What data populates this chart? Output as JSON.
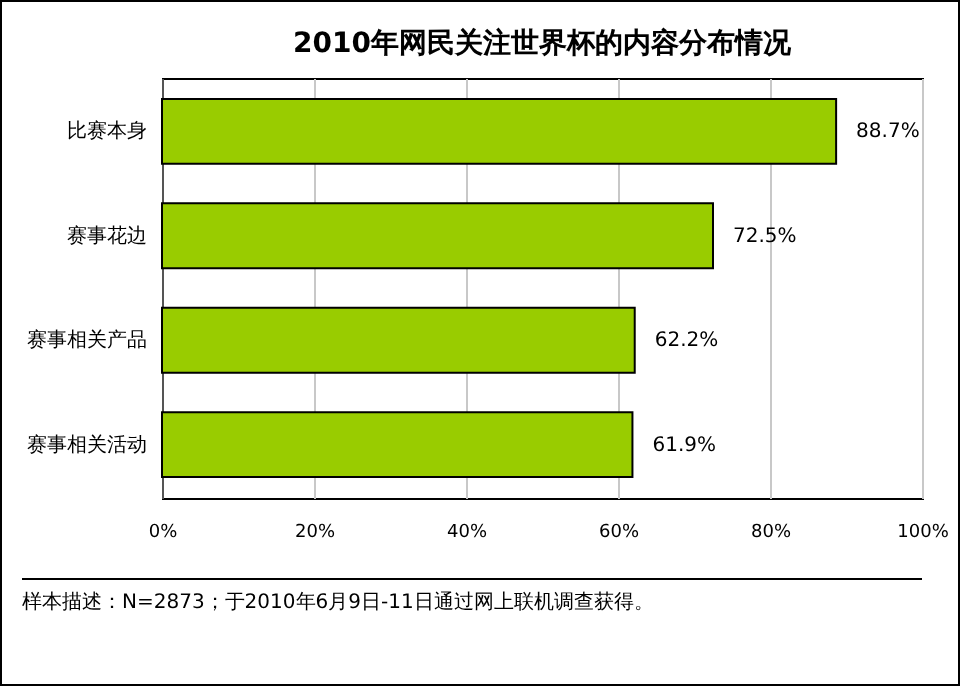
{
  "chart_data": {
    "type": "bar",
    "orientation": "horizontal",
    "title": "2010年网民关注世界杯的内容分布情况",
    "categories": [
      "比赛本身",
      "赛事花边",
      "赛事相关产品",
      "赛事相关活动"
    ],
    "values": [
      88.7,
      72.5,
      62.2,
      61.9
    ],
    "color": "#99cc00",
    "value_labels": [
      "88.7%",
      "72.5%",
      "62.2%",
      "61.9%"
    ],
    "xlim": [
      0,
      100
    ],
    "xticks": [
      {
        "value": 0,
        "label": "0%"
      },
      {
        "value": 20,
        "label": "20%"
      },
      {
        "value": 40,
        "label": "40%"
      },
      {
        "value": 60,
        "label": "60%"
      },
      {
        "value": 80,
        "label": "80%"
      },
      {
        "value": 100,
        "label": "100%"
      }
    ],
    "grid": "x",
    "annotations": [
      "样本描述：N=2873；于2010年6月9日-11日通过网上联机调查获得。"
    ]
  }
}
